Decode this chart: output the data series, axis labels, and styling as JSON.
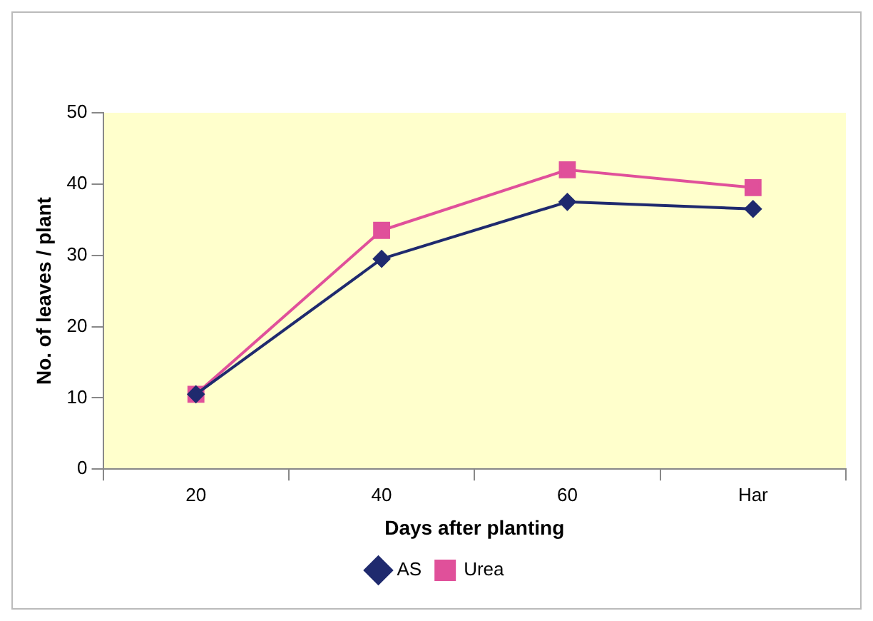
{
  "chart_data": {
    "type": "line",
    "xlabel": "Days after planting",
    "ylabel": "No. of leaves / plant",
    "categories": [
      "20",
      "40",
      "60",
      "Har"
    ],
    "series": [
      {
        "name": "AS",
        "color": "#1f2a6e",
        "marker": "diamond",
        "values": [
          10.5,
          29.5,
          37.5,
          36.5
        ]
      },
      {
        "name": "Urea",
        "color": "#e0509a",
        "marker": "square",
        "values": [
          10.5,
          33.5,
          42,
          39.5
        ]
      }
    ],
    "ylim": [
      0,
      50
    ],
    "yticks": [
      0,
      10,
      20,
      30,
      40,
      50
    ],
    "grid": false,
    "legend": "bottom"
  }
}
